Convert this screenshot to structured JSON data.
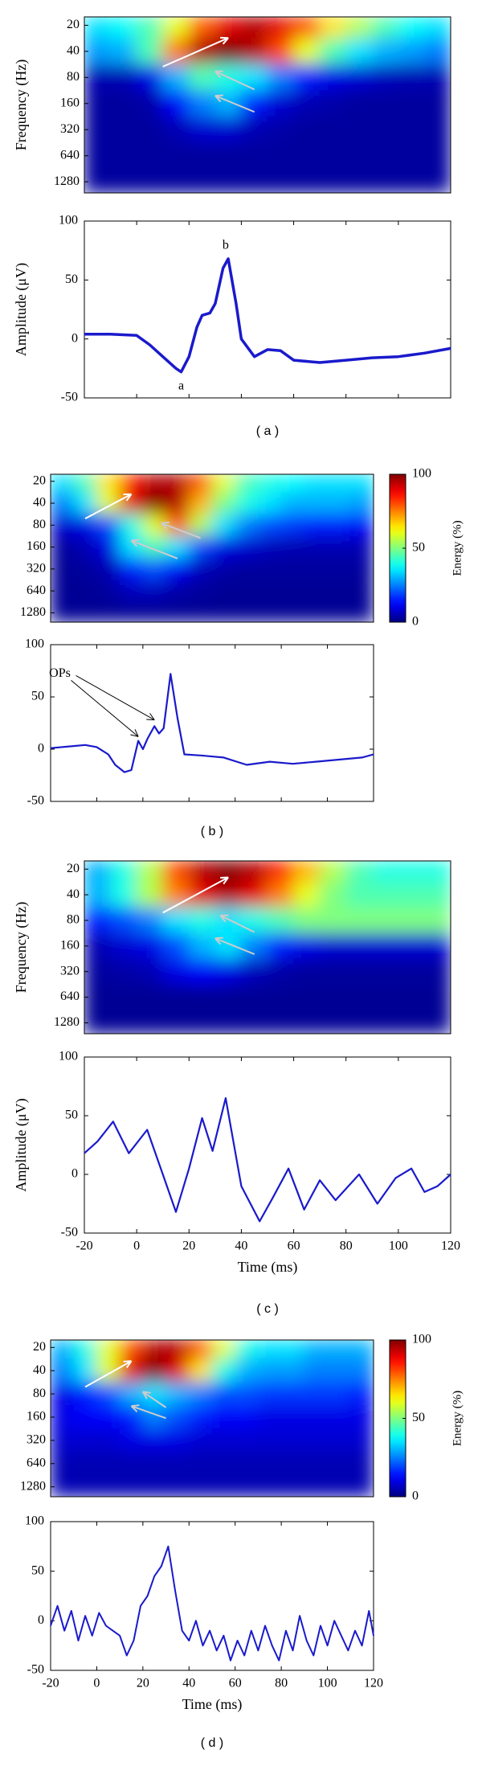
{
  "chart_data": [
    {
      "type": "heatmap",
      "ylabel": "Frequency (Hz)",
      "x": [
        -15,
        -5,
        5,
        15,
        25,
        35,
        45,
        55,
        65,
        75,
        85,
        95,
        105,
        115
      ],
      "y": [
        20,
        40,
        80,
        160,
        320,
        640,
        1280
      ],
      "values": [
        [
          35,
          38,
          45,
          60,
          78,
          90,
          95,
          90,
          80,
          65,
          55,
          45,
          38,
          35
        ],
        [
          28,
          30,
          45,
          75,
          95,
          100,
          95,
          80,
          60,
          45,
          35,
          30,
          28,
          25
        ],
        [
          5,
          5,
          10,
          30,
          45,
          40,
          35,
          25,
          15,
          10,
          8,
          6,
          5,
          5
        ],
        [
          3,
          3,
          4,
          12,
          25,
          30,
          15,
          8,
          5,
          4,
          3,
          3,
          3,
          3
        ],
        [
          3,
          3,
          3,
          5,
          8,
          8,
          5,
          4,
          3,
          3,
          3,
          3,
          3,
          3
        ],
        [
          3,
          3,
          3,
          3,
          3,
          3,
          3,
          3,
          3,
          3,
          3,
          3,
          3,
          3
        ],
        [
          3,
          3,
          3,
          3,
          3,
          3,
          3,
          3,
          3,
          3,
          3,
          3,
          3,
          3
        ]
      ],
      "xlim": [
        -20,
        120
      ],
      "ylim": [
        16,
        1720
      ],
      "log_y": true,
      "y_inverted": true,
      "yticks": [
        20,
        40,
        80,
        160,
        320,
        640,
        1280
      ]
    },
    {
      "type": "line",
      "ylabel": "Amplitude (μV)",
      "caption": "( a )",
      "annotations": [
        "a",
        "b"
      ],
      "x": [
        -20,
        -10,
        0,
        5,
        10,
        15,
        17,
        20,
        23,
        25,
        28,
        30,
        33,
        35,
        38,
        40,
        45,
        50,
        55,
        60,
        70,
        80,
        90,
        100,
        110,
        120
      ],
      "values": [
        4,
        4,
        3,
        -5,
        -15,
        -25,
        -28,
        -15,
        10,
        20,
        22,
        30,
        60,
        68,
        30,
        0,
        -15,
        -9,
        -10,
        -18,
        -20,
        -18,
        -16,
        -15,
        -12,
        -8
      ],
      "color": "#1a1acc",
      "linewidth": 3.5,
      "xlim": [
        -20,
        120
      ],
      "xticks": [
        -20,
        0,
        20,
        40,
        60,
        80,
        100,
        120
      ],
      "xtick_labels": false,
      "ylim": [
        -50,
        100
      ],
      "yticks": [
        -50,
        0,
        50,
        100
      ]
    },
    {
      "type": "heatmap",
      "x": [
        -15,
        -5,
        5,
        15,
        25,
        35,
        45,
        55,
        65,
        75,
        85,
        95,
        105,
        115
      ],
      "y": [
        20,
        40,
        80,
        160,
        320,
        640,
        1280
      ],
      "values": [
        [
          35,
          45,
          65,
          85,
          95,
          95,
          80,
          60,
          45,
          40,
          38,
          35,
          35,
          35
        ],
        [
          25,
          35,
          60,
          90,
          100,
          95,
          70,
          50,
          40,
          35,
          30,
          30,
          30,
          28
        ],
        [
          8,
          10,
          20,
          40,
          60,
          80,
          55,
          35,
          25,
          20,
          18,
          15,
          15,
          12
        ],
        [
          3,
          5,
          10,
          35,
          45,
          35,
          20,
          10,
          8,
          6,
          5,
          5,
          5,
          5
        ],
        [
          2,
          3,
          5,
          15,
          20,
          12,
          6,
          4,
          3,
          3,
          3,
          3,
          3,
          3
        ],
        [
          2,
          2,
          3,
          6,
          6,
          4,
          3,
          2,
          2,
          2,
          2,
          2,
          2,
          2
        ],
        [
          2,
          2,
          2,
          2,
          2,
          2,
          2,
          2,
          2,
          2,
          2,
          2,
          2,
          2
        ]
      ],
      "xlim": [
        -20,
        120
      ],
      "ylim": [
        16,
        1720
      ],
      "log_y": true,
      "y_inverted": true,
      "yticks": [
        20,
        40,
        80,
        160,
        320,
        640,
        1280
      ],
      "colorbar": {
        "label": "Energy (%)",
        "lim": [
          0,
          100
        ],
        "ticks": [
          0,
          50,
          100
        ]
      }
    },
    {
      "type": "line",
      "caption": "( b )",
      "annotations": [
        "OPs"
      ],
      "x": [
        -20,
        -10,
        -5,
        0,
        5,
        8,
        12,
        15,
        18,
        20,
        22,
        25,
        27,
        29,
        32,
        35,
        38,
        45,
        55,
        65,
        75,
        85,
        95,
        105,
        115,
        120
      ],
      "values": [
        1,
        3,
        4,
        2,
        -5,
        -15,
        -22,
        -20,
        8,
        0,
        10,
        22,
        15,
        20,
        72,
        30,
        -5,
        -6,
        -8,
        -15,
        -12,
        -14,
        -12,
        -10,
        -8,
        -5
      ],
      "color": "#1a1acc",
      "linewidth": 2.2,
      "xlim": [
        -20,
        120
      ],
      "xticks": [
        -20,
        0,
        20,
        40,
        60,
        80,
        100,
        120
      ],
      "xtick_labels": false,
      "ylim": [
        -50,
        100
      ],
      "yticks": [
        -50,
        0,
        50,
        100
      ]
    },
    {
      "type": "heatmap",
      "ylabel": "Frequency (Hz)",
      "x": [
        -15,
        -5,
        5,
        15,
        25,
        35,
        45,
        55,
        65,
        75,
        85,
        95,
        105,
        115
      ],
      "y": [
        20,
        40,
        80,
        160,
        320,
        640,
        1280
      ],
      "values": [
        [
          30,
          40,
          55,
          80,
          95,
          100,
          95,
          85,
          70,
          55,
          45,
          40,
          40,
          40
        ],
        [
          30,
          40,
          55,
          75,
          90,
          95,
          90,
          75,
          60,
          50,
          45,
          45,
          45,
          45
        ],
        [
          15,
          20,
          25,
          35,
          40,
          35,
          40,
          45,
          50,
          50,
          50,
          50,
          50,
          50
        ],
        [
          5,
          8,
          10,
          20,
          30,
          35,
          25,
          15,
          10,
          8,
          8,
          8,
          8,
          8
        ],
        [
          3,
          4,
          5,
          10,
          12,
          10,
          6,
          4,
          3,
          3,
          3,
          3,
          3,
          3
        ],
        [
          2,
          2,
          2,
          2,
          2,
          2,
          2,
          2,
          2,
          2,
          2,
          2,
          2,
          2
        ],
        [
          2,
          2,
          2,
          2,
          2,
          2,
          2,
          2,
          2,
          2,
          2,
          2,
          2,
          2
        ]
      ],
      "xlim": [
        -20,
        120
      ],
      "ylim": [
        16,
        1720
      ],
      "log_y": true,
      "y_inverted": true,
      "yticks": [
        20,
        40,
        80,
        160,
        320,
        640,
        1280
      ]
    },
    {
      "type": "line",
      "ylabel": "Amplitude (μV)",
      "caption": "( c )",
      "xlabel": "Time (ms)",
      "x": [
        -20,
        -15,
        -9,
        -3,
        4,
        10,
        15,
        20,
        25,
        29,
        34,
        40,
        47,
        52,
        58,
        64,
        70,
        76,
        85,
        92,
        99,
        105,
        110,
        115,
        120
      ],
      "values": [
        18,
        28,
        45,
        18,
        38,
        0,
        -32,
        5,
        48,
        20,
        65,
        -10,
        -40,
        -20,
        5,
        -30,
        -5,
        -22,
        0,
        -25,
        -3,
        5,
        -15,
        -10,
        0
      ],
      "color": "#1a1acc",
      "linewidth": 2.2,
      "xlim": [
        -20,
        120
      ],
      "xticks": [
        -20,
        0,
        20,
        40,
        60,
        80,
        100,
        120
      ],
      "ylim": [
        -50,
        100
      ],
      "yticks": [
        -50,
        0,
        50,
        100
      ]
    },
    {
      "type": "heatmap",
      "x": [
        -15,
        -5,
        5,
        15,
        25,
        35,
        45,
        55,
        65,
        75,
        85,
        95,
        105,
        115
      ],
      "y": [
        20,
        40,
        80,
        160,
        320,
        640,
        1280
      ],
      "values": [
        [
          30,
          40,
          60,
          80,
          95,
          95,
          80,
          60,
          40,
          35,
          35,
          30,
          30,
          30
        ],
        [
          25,
          35,
          60,
          90,
          100,
          90,
          65,
          40,
          30,
          28,
          28,
          25,
          25,
          25
        ],
        [
          10,
          15,
          20,
          30,
          35,
          30,
          25,
          20,
          20,
          18,
          18,
          18,
          18,
          15
        ],
        [
          10,
          12,
          12,
          15,
          25,
          20,
          15,
          12,
          12,
          10,
          10,
          10,
          10,
          10
        ],
        [
          8,
          8,
          8,
          10,
          10,
          10,
          8,
          8,
          8,
          8,
          8,
          8,
          8,
          8
        ],
        [
          5,
          5,
          5,
          5,
          5,
          5,
          5,
          5,
          5,
          5,
          5,
          5,
          5,
          5
        ],
        [
          5,
          5,
          5,
          5,
          5,
          5,
          5,
          5,
          5,
          5,
          5,
          5,
          5,
          5
        ]
      ],
      "xlim": [
        -20,
        120
      ],
      "ylim": [
        16,
        1720
      ],
      "log_y": true,
      "y_inverted": true,
      "yticks": [
        20,
        40,
        80,
        160,
        320,
        640,
        1280
      ],
      "colorbar": {
        "label": "Energy (%)",
        "lim": [
          0,
          100
        ],
        "ticks": [
          0,
          50,
          100
        ]
      }
    },
    {
      "type": "line",
      "caption": "( d )",
      "xlabel": "Time (ms)",
      "x": [
        -20,
        -17,
        -14,
        -11,
        -8,
        -5,
        -2,
        1,
        4,
        7,
        10,
        13,
        16,
        19,
        22,
        25,
        28,
        31,
        34,
        37,
        40,
        43,
        46,
        49,
        52,
        55,
        58,
        61,
        64,
        67,
        70,
        73,
        76,
        79,
        82,
        85,
        88,
        91,
        94,
        97,
        100,
        103,
        106,
        109,
        112,
        115,
        118,
        120
      ],
      "values": [
        -5,
        15,
        -10,
        10,
        -20,
        5,
        -15,
        8,
        -5,
        -10,
        -15,
        -35,
        -20,
        15,
        25,
        45,
        55,
        75,
        30,
        -10,
        -20,
        0,
        -25,
        -10,
        -30,
        -15,
        -40,
        -20,
        -35,
        -10,
        -30,
        -5,
        -25,
        -40,
        -10,
        -30,
        5,
        -20,
        -35,
        -5,
        -25,
        0,
        -15,
        -30,
        -10,
        -25,
        10,
        -15
      ],
      "color": "#1a1acc",
      "linewidth": 2,
      "xlim": [
        -20,
        120
      ],
      "xticks": [
        -20,
        0,
        20,
        40,
        60,
        80,
        100,
        120
      ],
      "ylim": [
        -50,
        100
      ],
      "yticks": [
        -50,
        0,
        50,
        100
      ]
    }
  ]
}
